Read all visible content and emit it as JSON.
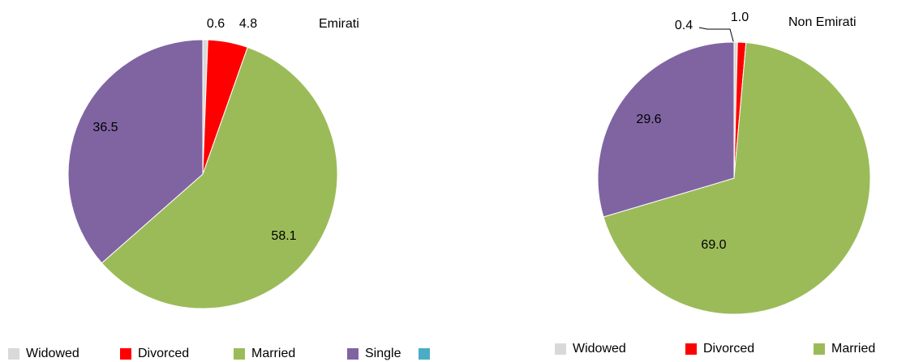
{
  "chart_data": [
    {
      "type": "pie",
      "title": "Emirati",
      "categories": [
        "Widowed",
        "Divorced",
        "Married",
        "Single",
        null
      ],
      "values": [
        0.6,
        4.8,
        58.1,
        36.5,
        null
      ],
      "colors": [
        "#d9d9d9",
        "#ff0000",
        "#9bbb59",
        "#8064a2",
        "#4bacc6"
      ]
    },
    {
      "type": "pie",
      "title": "Non Emirati",
      "categories": [
        "Widowed",
        "Divorced",
        "Married",
        null
      ],
      "values": [
        0.4,
        1.0,
        69.0,
        29.6
      ],
      "value_labels": [
        "0.4",
        "1.0",
        "69.0",
        "29.6"
      ],
      "colors": [
        "#d9d9d9",
        "#ff0000",
        "#9bbb59",
        "#8064a2"
      ]
    }
  ]
}
